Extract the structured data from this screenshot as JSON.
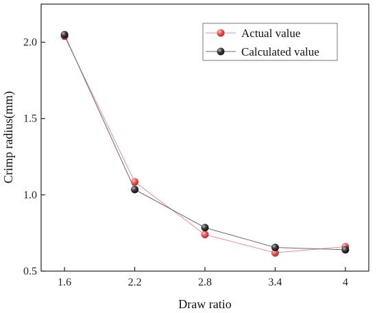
{
  "chart_data": {
    "type": "line",
    "xlabel": "Draw ratio",
    "ylabel": "Crimp radius(mm)",
    "x_ticks": [
      "1.6",
      "2.2",
      "2.8",
      "3.4",
      "4"
    ],
    "y_ticks": [
      "0.5",
      "1.0",
      "1.5",
      "2.0"
    ],
    "xlim": [
      1.4,
      4.2
    ],
    "ylim": [
      0.5,
      2.25
    ],
    "grid": false,
    "legend_position": "top-right",
    "series": [
      {
        "name": "Actual value",
        "color": "#f25a5a",
        "line_color": "#f08a8a",
        "points": [
          {
            "x": 1.6,
            "y": 2.04
          },
          {
            "x": 2.2,
            "y": 1.085
          },
          {
            "x": 2.8,
            "y": 0.74
          },
          {
            "x": 3.4,
            "y": 0.62
          },
          {
            "x": 4.0,
            "y": 0.66
          }
        ]
      },
      {
        "name": "Calculated value",
        "color": "#3c3c3c",
        "line_color": "#6a6a6a",
        "points": [
          {
            "x": 1.6,
            "y": 2.05
          },
          {
            "x": 2.2,
            "y": 1.035
          },
          {
            "x": 2.8,
            "y": 0.785
          },
          {
            "x": 3.4,
            "y": 0.655
          },
          {
            "x": 4.0,
            "y": 0.64
          }
        ]
      }
    ]
  }
}
